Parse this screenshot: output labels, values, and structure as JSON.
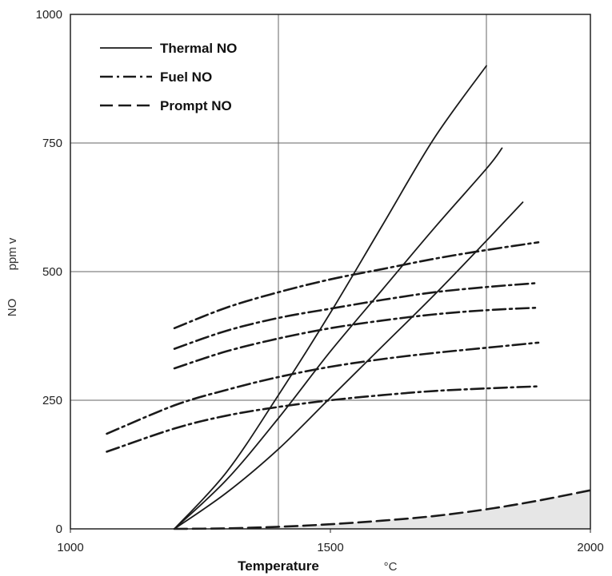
{
  "chart_data": {
    "type": "line",
    "xlabel": "Temperature",
    "xunit": "°C",
    "ylabel": "NO",
    "yunit": "ppm v",
    "xlim": [
      1000,
      2000
    ],
    "ylim": [
      0,
      1000
    ],
    "x_ticks": [
      1000,
      1500,
      2000
    ],
    "y_ticks": [
      0,
      250,
      500,
      750,
      1000
    ],
    "x_gridlines": [
      1400,
      1800
    ],
    "y_gridlines": [
      250,
      500,
      750
    ],
    "legend_position": "top-left",
    "legend": [
      {
        "label": "Thermal NO",
        "style": "solid"
      },
      {
        "label": "Fuel NO",
        "style": "dash-dot"
      },
      {
        "label": "Prompt NO",
        "style": "dashed"
      }
    ],
    "series": [
      {
        "group": "Thermal NO",
        "style": "solid",
        "x": [
          1200,
          1300,
          1400,
          1500,
          1600,
          1700,
          1800
        ],
        "y": [
          0,
          110,
          260,
          420,
          590,
          760,
          900
        ]
      },
      {
        "group": "Thermal NO",
        "style": "solid",
        "x": [
          1200,
          1300,
          1400,
          1500,
          1600,
          1700,
          1800,
          1830
        ],
        "y": [
          0,
          95,
          215,
          345,
          465,
          585,
          700,
          740
        ]
      },
      {
        "group": "Thermal NO",
        "style": "solid",
        "x": [
          1200,
          1300,
          1400,
          1500,
          1600,
          1700,
          1800,
          1870
        ],
        "y": [
          0,
          70,
          155,
          255,
          355,
          455,
          560,
          635
        ]
      },
      {
        "group": "Fuel NO",
        "style": "dash-dot",
        "x": [
          1200,
          1300,
          1400,
          1500,
          1600,
          1700,
          1800,
          1900
        ],
        "y": [
          390,
          430,
          460,
          485,
          505,
          525,
          542,
          557
        ]
      },
      {
        "group": "Fuel NO",
        "style": "dash-dot",
        "x": [
          1200,
          1300,
          1400,
          1500,
          1600,
          1700,
          1800,
          1900
        ],
        "y": [
          350,
          385,
          410,
          428,
          445,
          460,
          470,
          478
        ]
      },
      {
        "group": "Fuel NO",
        "style": "dash-dot",
        "x": [
          1200,
          1300,
          1400,
          1500,
          1600,
          1700,
          1800,
          1900
        ],
        "y": [
          312,
          345,
          370,
          390,
          405,
          417,
          425,
          430
        ]
      },
      {
        "group": "Fuel NO",
        "style": "dash-dot",
        "x": [
          1070,
          1200,
          1300,
          1400,
          1500,
          1600,
          1700,
          1800,
          1900
        ],
        "y": [
          185,
          240,
          270,
          295,
          315,
          330,
          342,
          352,
          362
        ]
      },
      {
        "group": "Fuel NO",
        "style": "dash-dot",
        "x": [
          1070,
          1200,
          1300,
          1400,
          1500,
          1600,
          1700,
          1800,
          1900
        ],
        "y": [
          150,
          195,
          220,
          237,
          250,
          260,
          268,
          273,
          277
        ]
      },
      {
        "group": "Prompt NO",
        "style": "dashed",
        "fill_below": true,
        "x": [
          1200,
          1300,
          1400,
          1500,
          1600,
          1700,
          1800,
          1900,
          2000
        ],
        "y": [
          0,
          1,
          4,
          9,
          16,
          25,
          38,
          55,
          75
        ]
      }
    ]
  }
}
